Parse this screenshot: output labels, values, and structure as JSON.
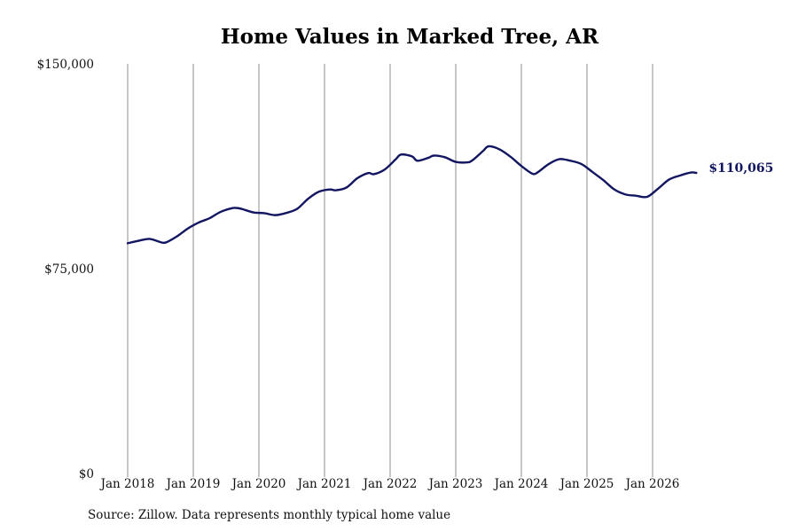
{
  "chart_data": {
    "type": "line",
    "title": "Home Values in Marked Tree, AR",
    "source": "Source: Zillow. Data represents monthly typical home value",
    "y_ticks": [
      {
        "value": 0,
        "label": "$0"
      },
      {
        "value": 75000,
        "label": "$75,000"
      },
      {
        "value": 150000,
        "label": "$150,000"
      }
    ],
    "ylim": [
      0,
      150000
    ],
    "x_ticks": [
      {
        "value": "2018-01",
        "label": "Jan 2018"
      },
      {
        "value": "2019-01",
        "label": "Jan 2019"
      },
      {
        "value": "2020-01",
        "label": "Jan 2020"
      },
      {
        "value": "2021-01",
        "label": "Jan 2021"
      },
      {
        "value": "2022-01",
        "label": "Jan 2022"
      },
      {
        "value": "2023-01",
        "label": "Jan 2023"
      },
      {
        "value": "2024-01",
        "label": "Jan 2024"
      },
      {
        "value": "2025-01",
        "label": "Jan 2025"
      },
      {
        "value": "2026-01",
        "label": "Jan 2026"
      }
    ],
    "grid": "vertical",
    "line_color": "#121660",
    "end_label": "$110,065",
    "series": [
      {
        "points": [
          [
            "2018-01",
            84300
          ],
          [
            "2018-03",
            85200
          ],
          [
            "2018-05",
            85900
          ],
          [
            "2018-07",
            84700
          ],
          [
            "2018-08",
            84600
          ],
          [
            "2018-10",
            86800
          ],
          [
            "2018-12",
            89700
          ],
          [
            "2019-02",
            91900
          ],
          [
            "2019-04",
            93500
          ],
          [
            "2019-06",
            95800
          ],
          [
            "2019-08",
            97100
          ],
          [
            "2019-09",
            97200
          ],
          [
            "2019-10",
            96800
          ],
          [
            "2019-12",
            95600
          ],
          [
            "2020-02",
            95300
          ],
          [
            "2020-04",
            94600
          ],
          [
            "2020-06",
            95400
          ],
          [
            "2020-08",
            96900
          ],
          [
            "2020-10",
            100600
          ],
          [
            "2020-12",
            103200
          ],
          [
            "2021-02",
            104000
          ],
          [
            "2021-03",
            103700
          ],
          [
            "2021-05",
            104700
          ],
          [
            "2021-07",
            108100
          ],
          [
            "2021-09",
            110000
          ],
          [
            "2021-10",
            109600
          ],
          [
            "2021-12",
            111300
          ],
          [
            "2022-02",
            115000
          ],
          [
            "2022-03",
            116800
          ],
          [
            "2022-05",
            116100
          ],
          [
            "2022-06",
            114500
          ],
          [
            "2022-08",
            115600
          ],
          [
            "2022-09",
            116400
          ],
          [
            "2022-11",
            115800
          ],
          [
            "2023-01",
            114100
          ],
          [
            "2023-03",
            113900
          ],
          [
            "2023-04",
            114600
          ],
          [
            "2023-06",
            118100
          ],
          [
            "2023-07",
            119800
          ],
          [
            "2023-09",
            118700
          ],
          [
            "2023-11",
            116000
          ],
          [
            "2024-01",
            112600
          ],
          [
            "2024-03",
            109800
          ],
          [
            "2024-04",
            110300
          ],
          [
            "2024-06",
            113300
          ],
          [
            "2024-08",
            115100
          ],
          [
            "2024-10",
            114500
          ],
          [
            "2024-12",
            113300
          ],
          [
            "2025-02",
            110400
          ],
          [
            "2025-04",
            107400
          ],
          [
            "2025-06",
            104000
          ],
          [
            "2025-08",
            102200
          ],
          [
            "2025-10",
            101700
          ],
          [
            "2025-12",
            101300
          ],
          [
            "2026-02",
            104300
          ],
          [
            "2026-04",
            107600
          ],
          [
            "2026-06",
            109100
          ],
          [
            "2026-08",
            110200
          ],
          [
            "2026-09",
            110065
          ]
        ]
      }
    ]
  }
}
